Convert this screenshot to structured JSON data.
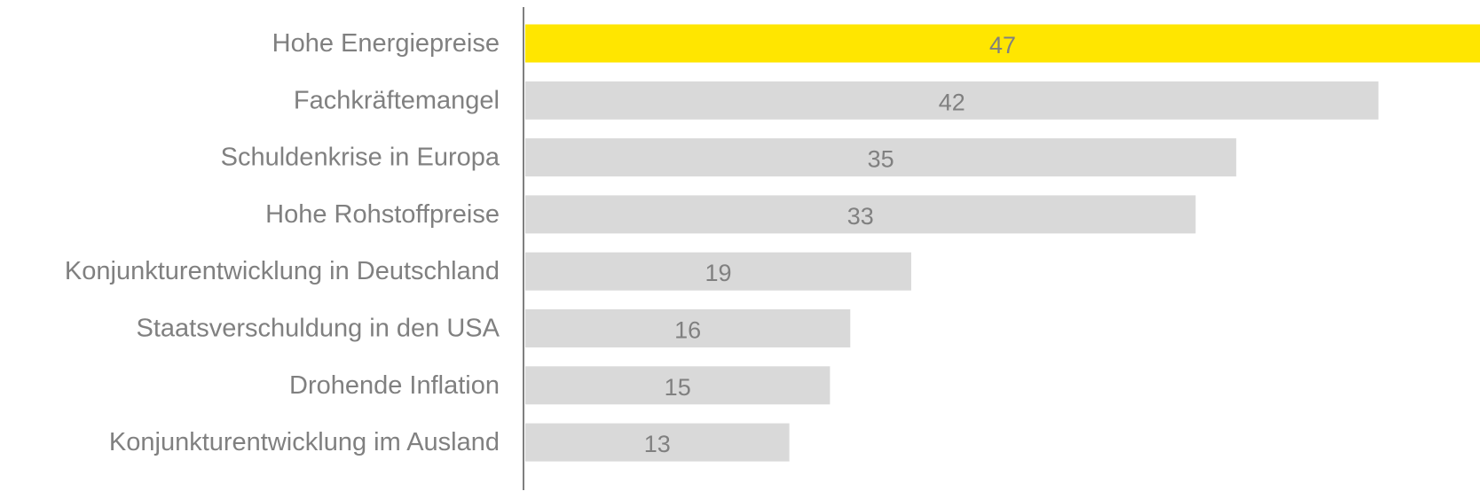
{
  "chart_data": {
    "type": "bar",
    "orientation": "horizontal",
    "categories": [
      "Hohe Energiepreise",
      "Fachkräftemangel",
      "Schuldenkrise in Europa",
      "Hohe Rohstoffpreise",
      "Konjunkturentwicklung in Deutschland",
      "Staatsverschuldung in den USA",
      "Drohende Inflation",
      "Konjunkturentwicklung im Ausland"
    ],
    "values": [
      47,
      42,
      35,
      33,
      19,
      16,
      15,
      13
    ],
    "highlight_index": 0,
    "xlim": [
      0,
      47
    ],
    "grid": false,
    "legend": "none",
    "colors": {
      "highlight": "#FFE600",
      "bar": "#D9D9D9",
      "label_text": "#808080",
      "axis_line": "#7F7F7F"
    }
  }
}
